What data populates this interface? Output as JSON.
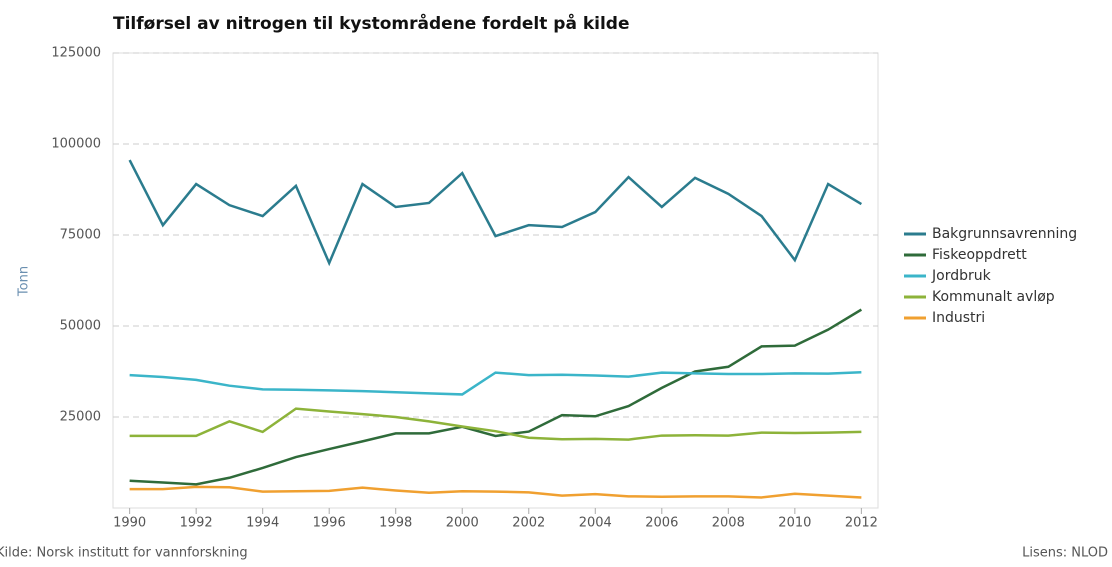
{
  "chart_data": {
    "type": "line",
    "title": "Tilførsel av nitrogen til kystområdene fordelt på kilde",
    "y_label": "Tonn",
    "source": "Kilde: Norsk institutt for vannforskning",
    "license": "Lisens: NLOD",
    "x": [
      1990,
      1991,
      1992,
      1993,
      1994,
      1995,
      1996,
      1997,
      1998,
      1999,
      2000,
      2001,
      2002,
      2003,
      2004,
      2005,
      2006,
      2007,
      2008,
      2009,
      2010,
      2011,
      2012
    ],
    "xlim": [
      1989.5,
      2012.5
    ],
    "xticks": [
      1990,
      1992,
      1994,
      1996,
      1998,
      2000,
      2002,
      2004,
      2006,
      2008,
      2010,
      2012
    ],
    "ylim": [
      0,
      125000
    ],
    "yticks": [
      25000,
      50000,
      75000,
      100000,
      125000
    ],
    "grid": true,
    "legend": "right",
    "series": [
      {
        "name": "Bakgrunnsavrenning",
        "color": "#2b7c8e",
        "values": [
          95600,
          77700,
          89000,
          83200,
          80200,
          88500,
          67300,
          89000,
          82700,
          83800,
          92000,
          74700,
          77700,
          77200,
          81300,
          90900,
          82700,
          90700,
          86300,
          80200,
          68100,
          89000,
          83500
        ]
      },
      {
        "name": "Fiskeoppdrett",
        "color": "#2f6b3a",
        "values": [
          7500,
          7000,
          6500,
          8300,
          11000,
          14000,
          16200,
          18300,
          20500,
          20500,
          22300,
          19800,
          21000,
          25500,
          25200,
          28000,
          33000,
          37500,
          38800,
          44400,
          44600,
          49000,
          54500
        ]
      },
      {
        "name": "Jordbruk",
        "color": "#3bb5c9",
        "values": [
          36500,
          36000,
          35200,
          33600,
          32600,
          32500,
          32300,
          32100,
          31800,
          31500,
          31200,
          37200,
          36500,
          36600,
          36400,
          36100,
          37200,
          37000,
          36800,
          36800,
          37000,
          36900,
          37300
        ]
      },
      {
        "name": "Kommunalt avløp",
        "color": "#8db33a",
        "values": [
          19800,
          19800,
          19800,
          23800,
          20900,
          27300,
          26500,
          25800,
          25000,
          23800,
          22400,
          21100,
          19300,
          18900,
          19000,
          18800,
          19900,
          20000,
          19900,
          20700,
          20600,
          20700,
          20900
        ]
      },
      {
        "name": "Industri",
        "color": "#f0a030",
        "values": [
          5200,
          5200,
          5800,
          5700,
          4500,
          4600,
          4700,
          5600,
          4800,
          4200,
          4600,
          4500,
          4300,
          3400,
          3800,
          3200,
          3100,
          3200,
          3200,
          2900,
          3900,
          3400,
          2900
        ]
      }
    ]
  }
}
